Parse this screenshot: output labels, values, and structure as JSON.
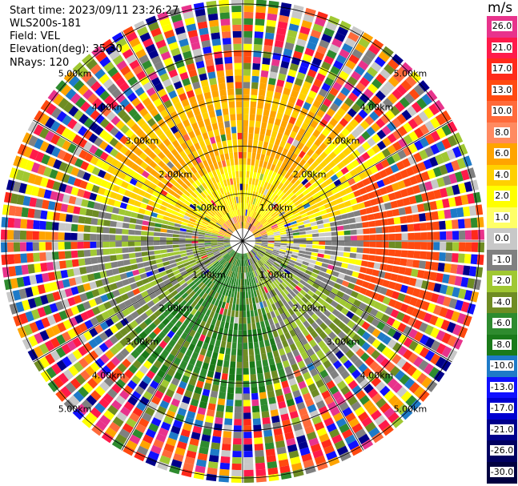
{
  "header": {
    "start_time": "Start time: 2023/09/11 23:26:27",
    "instrument": "WLS200s-181",
    "field": "Field: VEL",
    "elevation": "Elevation(deg): 35.30",
    "nrays": "NRays: 120"
  },
  "chart_data": {
    "type": "ppi",
    "range_labels": [
      "1.00km",
      "2.00km",
      "3.00km",
      "4.00km",
      "5.00km"
    ],
    "range_rings_km": [
      1,
      2,
      3,
      4,
      5
    ],
    "max_range_km": 5.1,
    "grid_azimuths_deg": [
      0,
      30,
      60,
      90,
      120,
      150,
      180,
      210,
      240,
      270,
      300,
      330
    ],
    "rays": 120
  },
  "colorbar": {
    "unit": "m/s",
    "labels": [
      "26.0",
      "21.0",
      "17.0",
      "13.0",
      "10.0",
      "8.0",
      "6.0",
      "4.0",
      "2.0",
      "1.0",
      "0.0",
      "-1.0",
      "-2.0",
      "-4.0",
      "-6.0",
      "-8.0",
      "-10.0",
      "-13.0",
      "-17.0",
      "-21.0",
      "-26.0",
      "-30.0"
    ],
    "colors": [
      "#e8338c",
      "#ff1a4a",
      "#ff2a1a",
      "#ff4a10",
      "#ff6a3a",
      "#ff8a60",
      "#ffa400",
      "#ffd000",
      "#ffff00",
      "#ffff66",
      "#c8c8c8",
      "#808080",
      "#a0c832",
      "#6e8c23",
      "#2e8b2e",
      "#1a7a1a",
      "#1e7ac8",
      "#1010ff",
      "#0000d0",
      "#00008b",
      "#000060",
      "#000040"
    ]
  }
}
